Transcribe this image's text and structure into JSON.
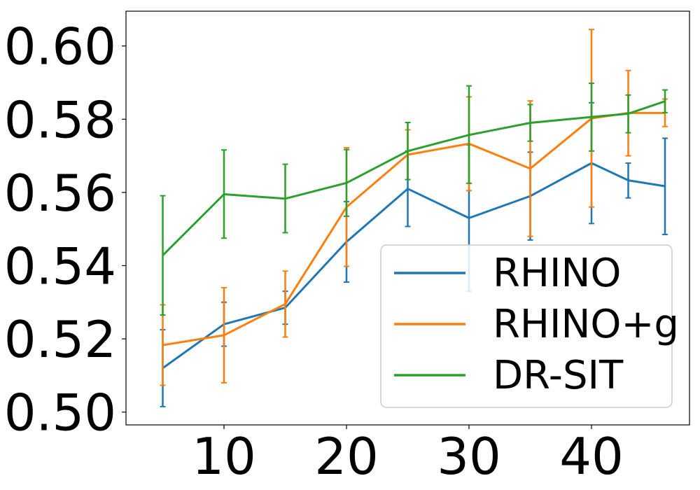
{
  "chart_data": {
    "type": "line",
    "title": "",
    "xlabel": "",
    "ylabel": "",
    "xlim": [
      2,
      48
    ],
    "ylim": [
      0.4965,
      0.6095
    ],
    "x_ticks": [
      10,
      20,
      30,
      40
    ],
    "x_tick_labels": [
      "10",
      "20",
      "30",
      "40"
    ],
    "y_ticks": [
      0.5,
      0.52,
      0.54,
      0.56,
      0.58,
      0.6
    ],
    "y_tick_labels": [
      "0.50",
      "0.52",
      "0.54",
      "0.56",
      "0.58",
      "0.60"
    ],
    "grid": false,
    "legend_position": "lower-right",
    "series": [
      {
        "name": "RHINO",
        "color": "#1f77b4",
        "x": [
          5,
          10,
          15,
          20,
          25,
          30,
          35,
          40,
          43,
          46
        ],
        "y": [
          0.512,
          0.524,
          0.5285,
          0.5465,
          0.561,
          0.553,
          0.559,
          0.568,
          0.5633,
          0.5617
        ],
        "err_low": [
          0.5015,
          0.518,
          0.524,
          0.5355,
          0.5507,
          0.533,
          0.547,
          0.5515,
          0.5585,
          0.5485
        ],
        "err_high": [
          0.5225,
          0.53,
          0.533,
          0.5575,
          0.5713,
          0.573,
          0.571,
          0.5845,
          0.568,
          0.5748
        ]
      },
      {
        "name": "RHINO+g",
        "color": "#ff7f0e",
        "x": [
          5,
          10,
          15,
          20,
          25,
          30,
          35,
          40,
          43,
          46
        ],
        "y": [
          0.5183,
          0.521,
          0.5295,
          0.556,
          0.5703,
          0.5733,
          0.5665,
          0.5802,
          0.5817,
          0.5817
        ],
        "err_low": [
          0.5073,
          0.508,
          0.5205,
          0.5398,
          0.5635,
          0.5605,
          0.548,
          0.556,
          0.57,
          0.578
        ],
        "err_high": [
          0.5293,
          0.534,
          0.5385,
          0.5722,
          0.5771,
          0.5861,
          0.585,
          0.6045,
          0.5933,
          0.5855
        ]
      },
      {
        "name": "DR-SIT",
        "color": "#2ca02c",
        "x": [
          5,
          10,
          15,
          20,
          25,
          30,
          35,
          40,
          43,
          46
        ],
        "y": [
          0.5428,
          0.5595,
          0.5583,
          0.5626,
          0.5713,
          0.5757,
          0.579,
          0.5806,
          0.5815,
          0.5849
        ],
        "err_low": [
          0.5265,
          0.5475,
          0.549,
          0.5535,
          0.5635,
          0.5625,
          0.574,
          0.5713,
          0.5763,
          0.5818
        ],
        "err_high": [
          0.5591,
          0.5716,
          0.5677,
          0.5717,
          0.5791,
          0.5891,
          0.584,
          0.5898,
          0.5866,
          0.588
        ]
      }
    ]
  }
}
